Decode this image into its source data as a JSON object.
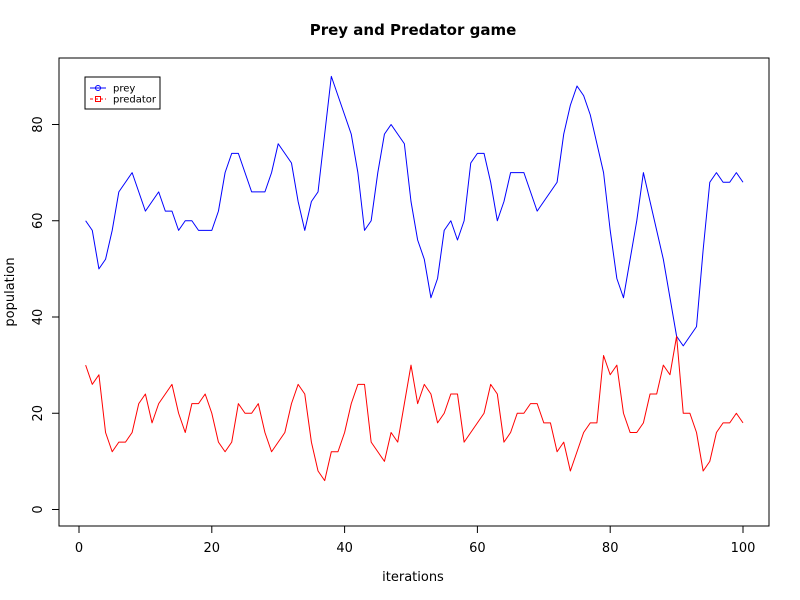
{
  "chart_data": {
    "type": "line",
    "title": "Prey and Predator game",
    "xlabel": "iterations",
    "ylabel": "population",
    "xlim": [
      0,
      100
    ],
    "ylim": [
      0,
      90
    ],
    "x_ticks": [
      "0",
      "20",
      "40",
      "60",
      "80",
      "100"
    ],
    "y_ticks": [
      "0",
      "20",
      "40",
      "60",
      "80"
    ],
    "grid": false,
    "legend_position": "top-left",
    "x": [
      1,
      2,
      3,
      4,
      5,
      6,
      7,
      8,
      9,
      10,
      11,
      12,
      13,
      14,
      15,
      16,
      17,
      18,
      19,
      20,
      21,
      22,
      23,
      24,
      25,
      26,
      27,
      28,
      29,
      30,
      31,
      32,
      33,
      34,
      35,
      36,
      37,
      38,
      39,
      40,
      41,
      42,
      43,
      44,
      45,
      46,
      47,
      48,
      49,
      50,
      51,
      52,
      53,
      54,
      55,
      56,
      57,
      58,
      59,
      60,
      61,
      62,
      63,
      64,
      65,
      66,
      67,
      68,
      69,
      70,
      71,
      72,
      73,
      74,
      75,
      76,
      77,
      78,
      79,
      80,
      81,
      82,
      83,
      84,
      85,
      86,
      87,
      88,
      89,
      90,
      91,
      92,
      93,
      94,
      95,
      96,
      97,
      98,
      99,
      100
    ],
    "series": [
      {
        "name": "prey",
        "color": "#0000ff",
        "marker": "circle",
        "values": [
          60,
          58,
          50,
          52,
          58,
          66,
          68,
          70,
          66,
          62,
          64,
          66,
          62,
          62,
          58,
          60,
          60,
          58,
          58,
          58,
          62,
          70,
          74,
          74,
          70,
          66,
          66,
          66,
          70,
          76,
          74,
          72,
          64,
          58,
          64,
          66,
          78,
          90,
          86,
          82,
          78,
          70,
          58,
          60,
          70,
          78,
          80,
          78,
          76,
          64,
          56,
          52,
          44,
          48,
          58,
          60,
          56,
          60,
          72,
          74,
          74,
          68,
          60,
          64,
          70,
          70,
          70,
          66,
          62,
          64,
          66,
          68,
          78,
          84,
          88,
          86,
          82,
          76,
          70,
          58,
          48,
          44,
          52,
          60,
          70,
          64,
          58,
          52,
          44,
          36,
          34,
          36,
          38,
          54,
          68,
          70,
          68,
          68,
          70,
          68
        ]
      },
      {
        "name": "predator",
        "color": "#ff0000",
        "marker": "square",
        "values": [
          30,
          26,
          28,
          16,
          12,
          14,
          14,
          16,
          22,
          24,
          18,
          22,
          24,
          26,
          20,
          16,
          22,
          22,
          24,
          20,
          14,
          12,
          14,
          22,
          20,
          20,
          22,
          16,
          12,
          14,
          16,
          22,
          26,
          24,
          14,
          8,
          6,
          12,
          12,
          16,
          22,
          26,
          26,
          14,
          12,
          10,
          16,
          14,
          22,
          30,
          22,
          26,
          24,
          18,
          20,
          24,
          24,
          14,
          16,
          18,
          20,
          26,
          24,
          14,
          16,
          20,
          20,
          22,
          22,
          18,
          18,
          12,
          14,
          8,
          12,
          16,
          18,
          18,
          32,
          28,
          30,
          20,
          16,
          16,
          18,
          24,
          24,
          30,
          28,
          36,
          20,
          20,
          16,
          8,
          10,
          16,
          18,
          18,
          20,
          18
        ]
      }
    ]
  }
}
